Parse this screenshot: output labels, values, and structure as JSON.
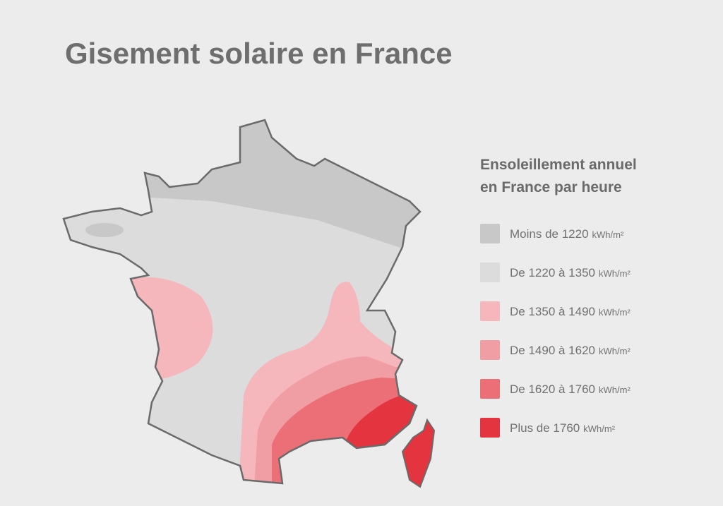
{
  "title": "Gisement solaire en France",
  "legend": {
    "title_lines": [
      "Ensoleillement annuel",
      "en France par heure"
    ],
    "items": [
      {
        "label": "Moins de 1220",
        "unit": "kWh/m²",
        "color": "#c8c8c8"
      },
      {
        "label": "De 1220 à 1350",
        "unit": "kWh/m²",
        "color": "#dcdcdc"
      },
      {
        "label": "De 1350 à 1490",
        "unit": "kWh/m²",
        "color": "#f5b7bb"
      },
      {
        "label": "De 1490 à 1620",
        "unit": "kWh/m²",
        "color": "#f09da3"
      },
      {
        "label": "De 1620 à 1760",
        "unit": "kWh/m²",
        "color": "#ec6f78"
      },
      {
        "label": "Plus de 1760",
        "unit": "kWh/m²",
        "color": "#e3343f"
      }
    ]
  }
}
